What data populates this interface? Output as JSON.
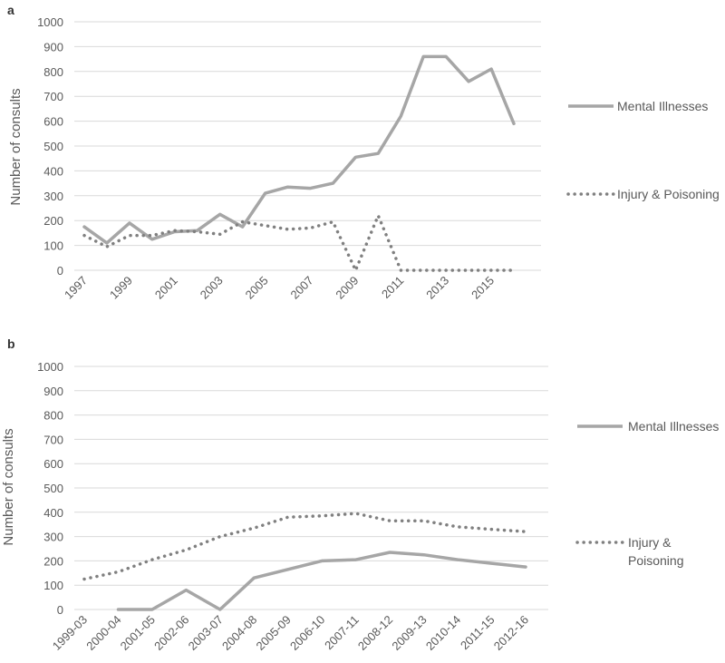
{
  "chart_data": [
    {
      "type": "line",
      "panel_label": "a",
      "title": "",
      "xlabel": "",
      "ylabel": "Number of consults",
      "ylim": [
        0,
        1000
      ],
      "yticks": [
        "0",
        "100",
        "200",
        "300",
        "400",
        "500",
        "600",
        "700",
        "800",
        "900",
        "1000"
      ],
      "x": [
        "1997",
        "1998",
        "1999",
        "2000",
        "2001",
        "2002",
        "2003",
        "2004",
        "2005",
        "2006",
        "2007",
        "2008",
        "2009",
        "2010",
        "2011",
        "2012",
        "2013",
        "2014",
        "2015",
        "2016"
      ],
      "xtick_labels": [
        "1997",
        "1999",
        "2001",
        "2003",
        "2005",
        "2007",
        "2009",
        "2011",
        "2013",
        "2015"
      ],
      "grid": true,
      "legend_position": "right",
      "series": [
        {
          "name": "Mental Illnesses",
          "style": "solid",
          "color": "#a6a6a6",
          "values": [
            175,
            110,
            190,
            125,
            155,
            160,
            225,
            175,
            310,
            335,
            330,
            350,
            455,
            470,
            620,
            860,
            860,
            760,
            810,
            590
          ]
        },
        {
          "name": "Injury & Poisoning",
          "style": "dotted",
          "color": "#808080",
          "values": [
            140,
            95,
            140,
            140,
            160,
            155,
            145,
            195,
            180,
            165,
            170,
            195,
            0,
            220,
            0,
            0,
            0,
            0,
            0,
            0
          ]
        }
      ]
    },
    {
      "type": "line",
      "panel_label": "b",
      "title": "",
      "xlabel": "",
      "ylabel": "Number of consults",
      "ylim": [
        0,
        1000
      ],
      "yticks": [
        "0",
        "100",
        "200",
        "300",
        "400",
        "500",
        "600",
        "700",
        "800",
        "900",
        "1000"
      ],
      "x": [
        "1999-03",
        "2000-04",
        "2001-05",
        "2002-06",
        "2003-07",
        "2004-08",
        "2005-09",
        "2006-10",
        "2007-11",
        "2008-12",
        "2009-13",
        "2010-14",
        "2011-15",
        "2012-16"
      ],
      "xtick_labels": [
        "1999-03",
        "2000-04",
        "2001-05",
        "2002-06",
        "2003-07",
        "2004-08",
        "2005-09",
        "2006-10",
        "2007-11",
        "2008-12",
        "2009-13",
        "2010-14",
        "2011-15",
        "2012-16"
      ],
      "grid": true,
      "legend_position": "right",
      "series": [
        {
          "name": "Mental Illnesses",
          "style": "solid",
          "color": "#a6a6a6",
          "values": [
            null,
            0,
            0,
            80,
            0,
            130,
            165,
            200,
            205,
            235,
            225,
            205,
            190,
            175
          ]
        },
        {
          "name": "Injury & Poisoning",
          "legend_lines": [
            "Injury &",
            "Poisoning"
          ],
          "style": "dotted",
          "color": "#808080",
          "values": [
            125,
            155,
            205,
            245,
            300,
            335,
            380,
            385,
            395,
            365,
            365,
            340,
            330,
            320
          ]
        }
      ]
    }
  ]
}
